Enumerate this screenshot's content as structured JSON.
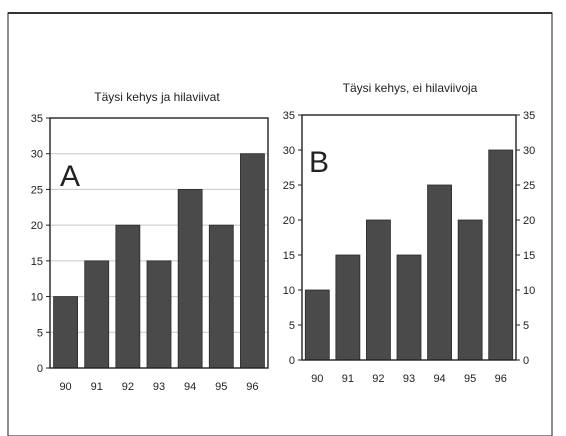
{
  "chart_data": [
    {
      "type": "bar",
      "label": "A",
      "title": "Täysi kehys ja hilaviivat",
      "categories": [
        "90",
        "91",
        "92",
        "93",
        "94",
        "95",
        "96"
      ],
      "values": [
        10,
        15,
        20,
        15,
        25,
        20,
        30
      ],
      "ylim": [
        0,
        35
      ],
      "yticks": [
        "0",
        "5",
        "10",
        "15",
        "20",
        "25",
        "30",
        "35"
      ],
      "grid": true,
      "frame": "full",
      "right_axis": false
    },
    {
      "type": "bar",
      "label": "B",
      "title": "Täysi kehys, ei hilaviivoja",
      "categories": [
        "90",
        "91",
        "92",
        "93",
        "94",
        "95",
        "96"
      ],
      "values": [
        10,
        15,
        20,
        15,
        25,
        20,
        30
      ],
      "ylim": [
        0,
        35
      ],
      "yticks": [
        "0",
        "5",
        "10",
        "15",
        "20",
        "25",
        "30",
        "35"
      ],
      "grid": false,
      "frame": "full",
      "right_axis": true
    }
  ],
  "colors": {
    "bar": "#4a4a4a",
    "grid": "#c8c8c8",
    "frame": "#222222"
  }
}
